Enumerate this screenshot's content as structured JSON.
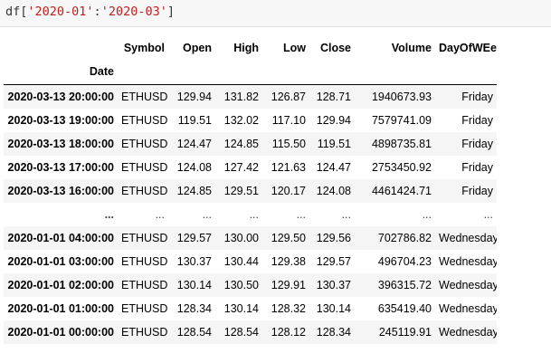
{
  "cell": {
    "code_prefix": "df[",
    "code_start": "'2020-01'",
    "code_sep": ":",
    "code_end": "'2020-03'",
    "code_suffix": "]"
  },
  "table": {
    "columns": [
      "Symbol",
      "Open",
      "High",
      "Low",
      "Close",
      "Volume",
      "DayOfWEek"
    ],
    "index_name": "Date",
    "rows": [
      {
        "date": "2020-03-13 20:00:00",
        "cells": [
          "ETHUSD",
          "129.94",
          "131.82",
          "126.87",
          "128.71",
          "1940673.93",
          "Friday"
        ]
      },
      {
        "date": "2020-03-13 19:00:00",
        "cells": [
          "ETHUSD",
          "119.51",
          "132.02",
          "117.10",
          "129.94",
          "7579741.09",
          "Friday"
        ]
      },
      {
        "date": "2020-03-13 18:00:00",
        "cells": [
          "ETHUSD",
          "124.47",
          "124.85",
          "115.50",
          "119.51",
          "4898735.81",
          "Friday"
        ]
      },
      {
        "date": "2020-03-13 17:00:00",
        "cells": [
          "ETHUSD",
          "124.08",
          "127.42",
          "121.63",
          "124.47",
          "2753450.92",
          "Friday"
        ]
      },
      {
        "date": "2020-03-13 16:00:00",
        "cells": [
          "ETHUSD",
          "124.85",
          "129.51",
          "120.17",
          "124.08",
          "4461424.71",
          "Friday"
        ]
      },
      {
        "date": "...",
        "cells": [
          "...",
          "...",
          "...",
          "...",
          "...",
          "...",
          "..."
        ]
      },
      {
        "date": "2020-01-01 04:00:00",
        "cells": [
          "ETHUSD",
          "129.57",
          "130.00",
          "129.50",
          "129.56",
          "702786.82",
          "Wednesday"
        ]
      },
      {
        "date": "2020-01-01 03:00:00",
        "cells": [
          "ETHUSD",
          "130.37",
          "130.44",
          "129.38",
          "129.57",
          "496704.23",
          "Wednesday"
        ]
      },
      {
        "date": "2020-01-01 02:00:00",
        "cells": [
          "ETHUSD",
          "130.14",
          "130.50",
          "129.91",
          "130.37",
          "396315.72",
          "Wednesday"
        ]
      },
      {
        "date": "2020-01-01 01:00:00",
        "cells": [
          "ETHUSD",
          "128.34",
          "130.14",
          "128.32",
          "130.14",
          "635419.40",
          "Wednesday"
        ]
      },
      {
        "date": "2020-01-01 00:00:00",
        "cells": [
          "ETHUSD",
          "128.54",
          "128.54",
          "128.12",
          "128.34",
          "245119.91",
          "Wednesday"
        ]
      }
    ]
  }
}
